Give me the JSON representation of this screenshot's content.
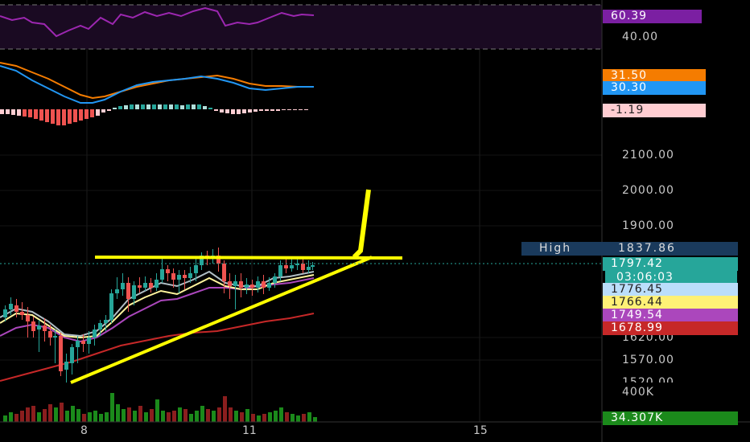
{
  "rsi": {
    "value": "60.39",
    "level": "40.00",
    "color": "#7b1fa2"
  },
  "macd": {
    "signal_value": "31.50",
    "signal_color": "#f57c00",
    "macd_value": "30.30",
    "macd_color": "#2196f3",
    "hist_value": "-1.19",
    "hist_color": "#ffcdd2"
  },
  "price_axis": [
    "2100.00",
    "2000.00",
    "1900.00",
    "1620.00",
    "1570.00",
    "1520.00"
  ],
  "price_tags": {
    "high_label": "High",
    "high_value": "1837.86",
    "last": "1797.42",
    "countdown": "03:06:03",
    "ma1": "1776.45",
    "ma2": "1766.44",
    "ma3": "1749.54",
    "ma4": "1678.99"
  },
  "volume": {
    "axis": "400K",
    "current": "34.307K"
  },
  "x_axis": [
    "8",
    "11",
    "15"
  ],
  "colors": {
    "up": "#26a69a",
    "down": "#ef5350",
    "vol_up": "#1b8a1b",
    "vol_down": "#8b1e1e",
    "drawing": "#ffff00"
  }
}
